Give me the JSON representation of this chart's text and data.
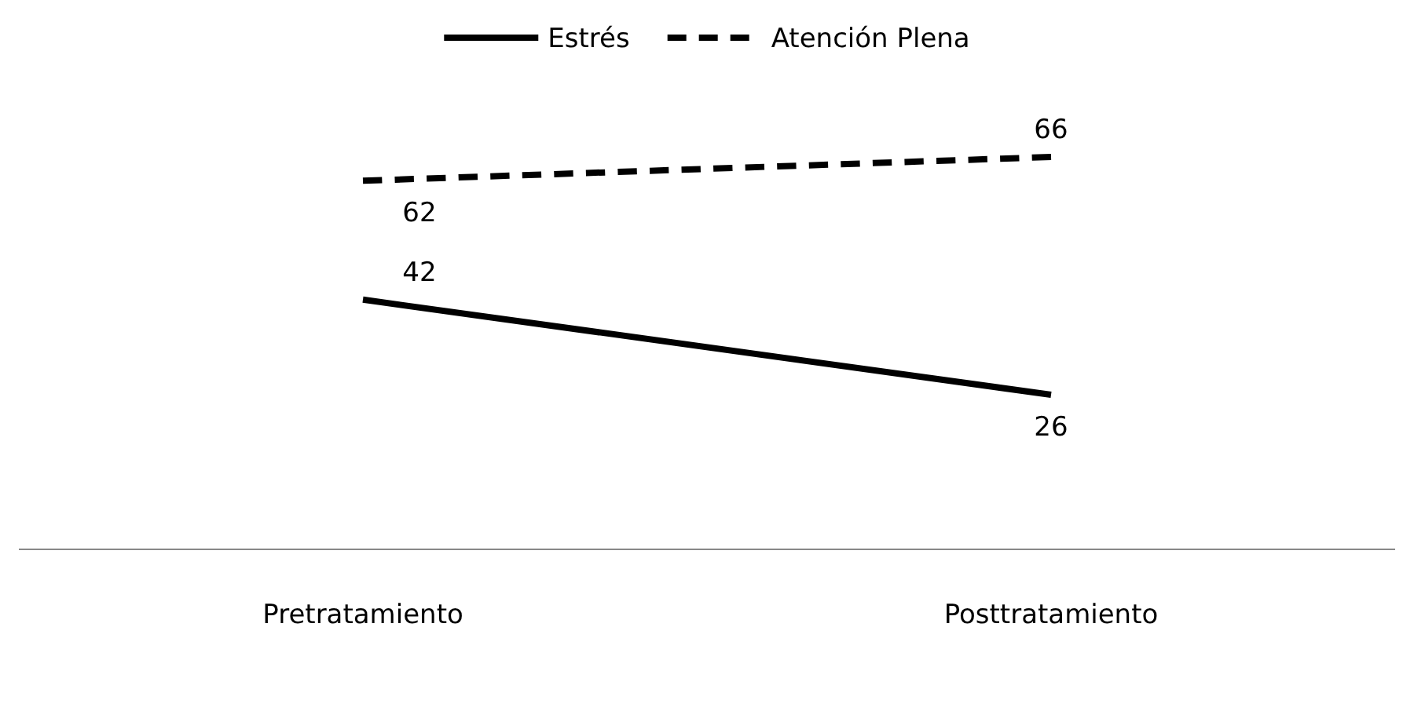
{
  "chart_data": {
    "type": "line",
    "categories": [
      "Pretratamiento",
      "Posttratamiento"
    ],
    "series": [
      {
        "name": "Estrés",
        "color": "#000000",
        "line_style": "solid",
        "values": [
          42,
          26
        ]
      },
      {
        "name": "Atención Plena",
        "color": "#000000",
        "line_style": "dashed",
        "values": [
          62,
          66
        ]
      }
    ],
    "tick_labels": "x",
    "data_labels": true,
    "legend": "top",
    "marker": "none"
  }
}
